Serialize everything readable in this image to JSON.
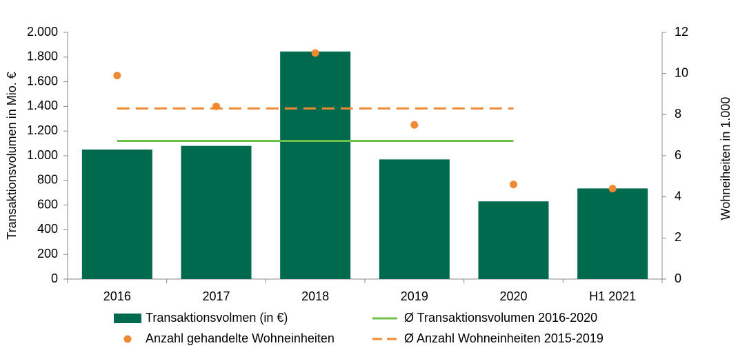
{
  "chart_data": {
    "type": "bar",
    "categories": [
      "2016",
      "2017",
      "2018",
      "2019",
      "2020",
      "H1 2021"
    ],
    "ylabel": "Transaktionsvolumen in Mio. €",
    "y2label": "Wohneiheiten in 1.000",
    "ylim": [
      0,
      2000
    ],
    "yticks": [
      0,
      200,
      400,
      600,
      800,
      {
        "value": 1000,
        "label": "1.000"
      },
      {
        "value": 1200,
        "label": "1.200"
      },
      {
        "value": 1400,
        "label": "1.400"
      },
      {
        "value": 1600,
        "label": "1.600"
      },
      {
        "value": 1800,
        "label": "1.800"
      },
      {
        "value": 2000,
        "label": "2.000"
      }
    ],
    "y2lim": [
      0,
      12
    ],
    "y2ticks": [
      0,
      2,
      4,
      6,
      8,
      10,
      12
    ],
    "grid": false,
    "series": [
      {
        "name": "Transaktionsvolmen (in €)",
        "type": "bar",
        "color": "#006a4e",
        "values": [
          1050,
          1080,
          1845,
          970,
          630,
          735
        ]
      },
      {
        "name": "Ø Transaktionsvolumen 2016-2020",
        "type": "line",
        "color": "#6cc04a",
        "values": [
          1120,
          1120,
          1120,
          1120,
          1120,
          null
        ]
      },
      {
        "name": "Anzahl gehandelte Wohneinheiten",
        "type": "scatter",
        "axis": "y2",
        "color": "#ef8a33",
        "values": [
          9.9,
          8.4,
          11.0,
          7.5,
          4.6,
          4.4
        ]
      },
      {
        "name": "Ø Anzahl Wohneinheiten 2015-2019",
        "type": "line",
        "dash": true,
        "axis": "y2",
        "color": "#ef8a33",
        "values": [
          8.3,
          8.3,
          8.3,
          8.3,
          8.3,
          null
        ]
      }
    ]
  }
}
